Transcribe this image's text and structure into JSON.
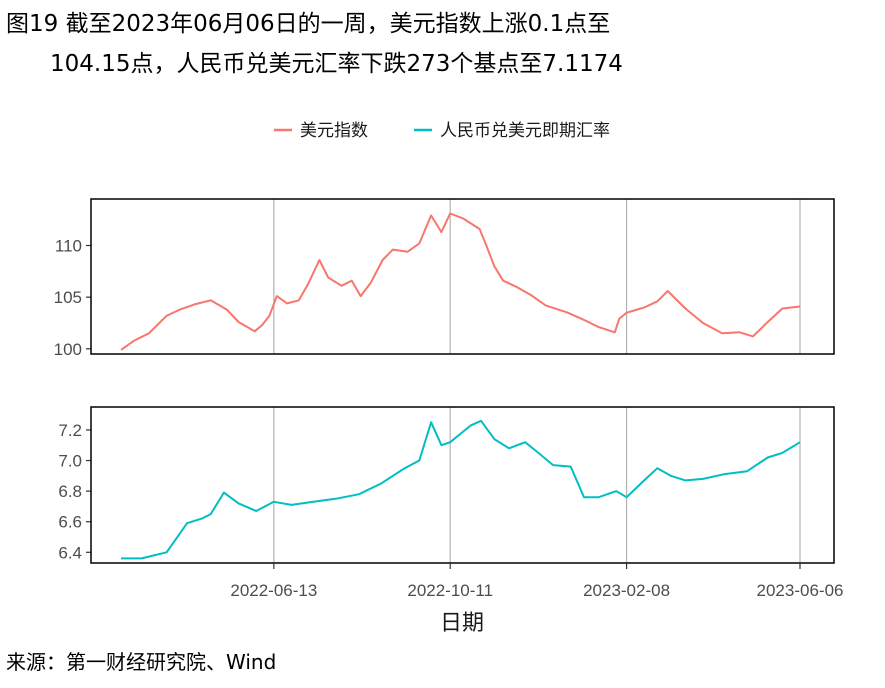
{
  "title_line1": "图19  截至2023年06月06日的一周，美元指数上涨0.1点至",
  "title_line2": "104.15点，人民币兑美元汇率下跌273个基点至7.1174",
  "source": "来源：第一财经研究院、Wind",
  "chart_data": {
    "type": "line",
    "xlabel": "日期",
    "x_ticks": [
      "2022-06-13",
      "2022-10-11",
      "2023-02-08",
      "2023-06-06"
    ],
    "x_range": [
      "2022-03-01",
      "2023-06-06"
    ],
    "legend": {
      "position": "top",
      "entries": [
        "美元指数",
        "人民币兑美元即期汇率"
      ]
    },
    "colors": {
      "dxy": "#F8766D",
      "cny": "#00BFC4"
    },
    "panels": [
      {
        "series_name": "美元指数",
        "ylim": [
          99.5,
          114.5
        ],
        "y_ticks": [
          100,
          105,
          110
        ],
        "x": [
          "2022-03-01",
          "2022-03-10",
          "2022-03-20",
          "2022-04-01",
          "2022-04-10",
          "2022-04-20",
          "2022-05-01",
          "2022-05-12",
          "2022-05-20",
          "2022-05-31",
          "2022-06-05",
          "2022-06-10",
          "2022-06-15",
          "2022-06-22",
          "2022-06-30",
          "2022-07-06",
          "2022-07-14",
          "2022-07-20",
          "2022-07-29",
          "2022-08-05",
          "2022-08-11",
          "2022-08-18",
          "2022-08-26",
          "2022-09-02",
          "2022-09-12",
          "2022-09-20",
          "2022-09-28",
          "2022-10-05",
          "2022-10-11",
          "2022-10-20",
          "2022-10-31",
          "2022-11-04",
          "2022-11-10",
          "2022-11-16",
          "2022-11-25",
          "2022-12-05",
          "2022-12-15",
          "2022-12-30",
          "2023-01-10",
          "2023-01-20",
          "2023-01-31",
          "2023-02-03",
          "2023-02-08",
          "2023-02-20",
          "2023-03-01",
          "2023-03-08",
          "2023-03-20",
          "2023-04-01",
          "2023-04-14",
          "2023-04-26",
          "2023-05-05",
          "2023-05-15",
          "2023-05-25",
          "2023-06-06"
        ],
        "values": [
          99.9,
          100.8,
          101.5,
          103.2,
          103.8,
          104.3,
          104.7,
          103.8,
          102.6,
          101.7,
          102.3,
          103.2,
          105.1,
          104.4,
          104.7,
          106.2,
          108.6,
          106.9,
          106.1,
          106.6,
          105.1,
          106.4,
          108.6,
          109.6,
          109.4,
          110.2,
          112.9,
          111.3,
          113.1,
          112.6,
          111.6,
          110.2,
          108.0,
          106.6,
          106.0,
          105.2,
          104.2,
          103.5,
          102.8,
          102.1,
          101.6,
          102.9,
          103.5,
          104.0,
          104.6,
          105.6,
          103.9,
          102.5,
          101.5,
          101.6,
          101.2,
          102.6,
          103.9,
          104.1
        ]
      },
      {
        "series_name": "人民币兑美元即期汇率",
        "ylim": [
          6.33,
          7.35
        ],
        "y_ticks": [
          6.4,
          6.6,
          6.8,
          7.0,
          7.2
        ],
        "x": [
          "2022-03-01",
          "2022-03-15",
          "2022-04-01",
          "2022-04-15",
          "2022-04-25",
          "2022-05-01",
          "2022-05-10",
          "2022-05-20",
          "2022-06-01",
          "2022-06-13",
          "2022-06-25",
          "2022-07-10",
          "2022-07-25",
          "2022-08-10",
          "2022-08-25",
          "2022-09-10",
          "2022-09-20",
          "2022-09-28",
          "2022-10-05",
          "2022-10-11",
          "2022-10-25",
          "2022-11-01",
          "2022-11-10",
          "2022-11-20",
          "2022-12-01",
          "2022-12-10",
          "2022-12-20",
          "2023-01-01",
          "2023-01-10",
          "2023-01-20",
          "2023-02-01",
          "2023-02-08",
          "2023-02-20",
          "2023-03-01",
          "2023-03-10",
          "2023-03-20",
          "2023-04-01",
          "2023-04-15",
          "2023-05-01",
          "2023-05-15",
          "2023-05-25",
          "2023-06-06"
        ],
        "values": [
          6.36,
          6.36,
          6.4,
          6.59,
          6.62,
          6.65,
          6.79,
          6.72,
          6.67,
          6.73,
          6.71,
          6.73,
          6.75,
          6.78,
          6.85,
          6.95,
          7.0,
          7.25,
          7.1,
          7.12,
          7.23,
          7.26,
          7.14,
          7.08,
          7.12,
          7.05,
          6.97,
          6.96,
          6.76,
          6.76,
          6.8,
          6.76,
          6.87,
          6.95,
          6.9,
          6.87,
          6.88,
          6.91,
          6.93,
          7.02,
          7.05,
          7.12
        ]
      }
    ]
  }
}
